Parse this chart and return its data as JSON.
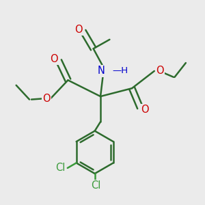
{
  "background_color": "#ebebeb",
  "bond_color": "#2d6b2d",
  "bond_width": 1.8,
  "atom_colors": {
    "O": "#cc0000",
    "N": "#0000cc",
    "Cl": "#3a9a3a",
    "C": "#1a1a1a"
  },
  "figsize": [
    3.0,
    3.0
  ],
  "dpi": 100,
  "xlim": [
    0,
    10
  ],
  "ylim": [
    0,
    10
  ]
}
